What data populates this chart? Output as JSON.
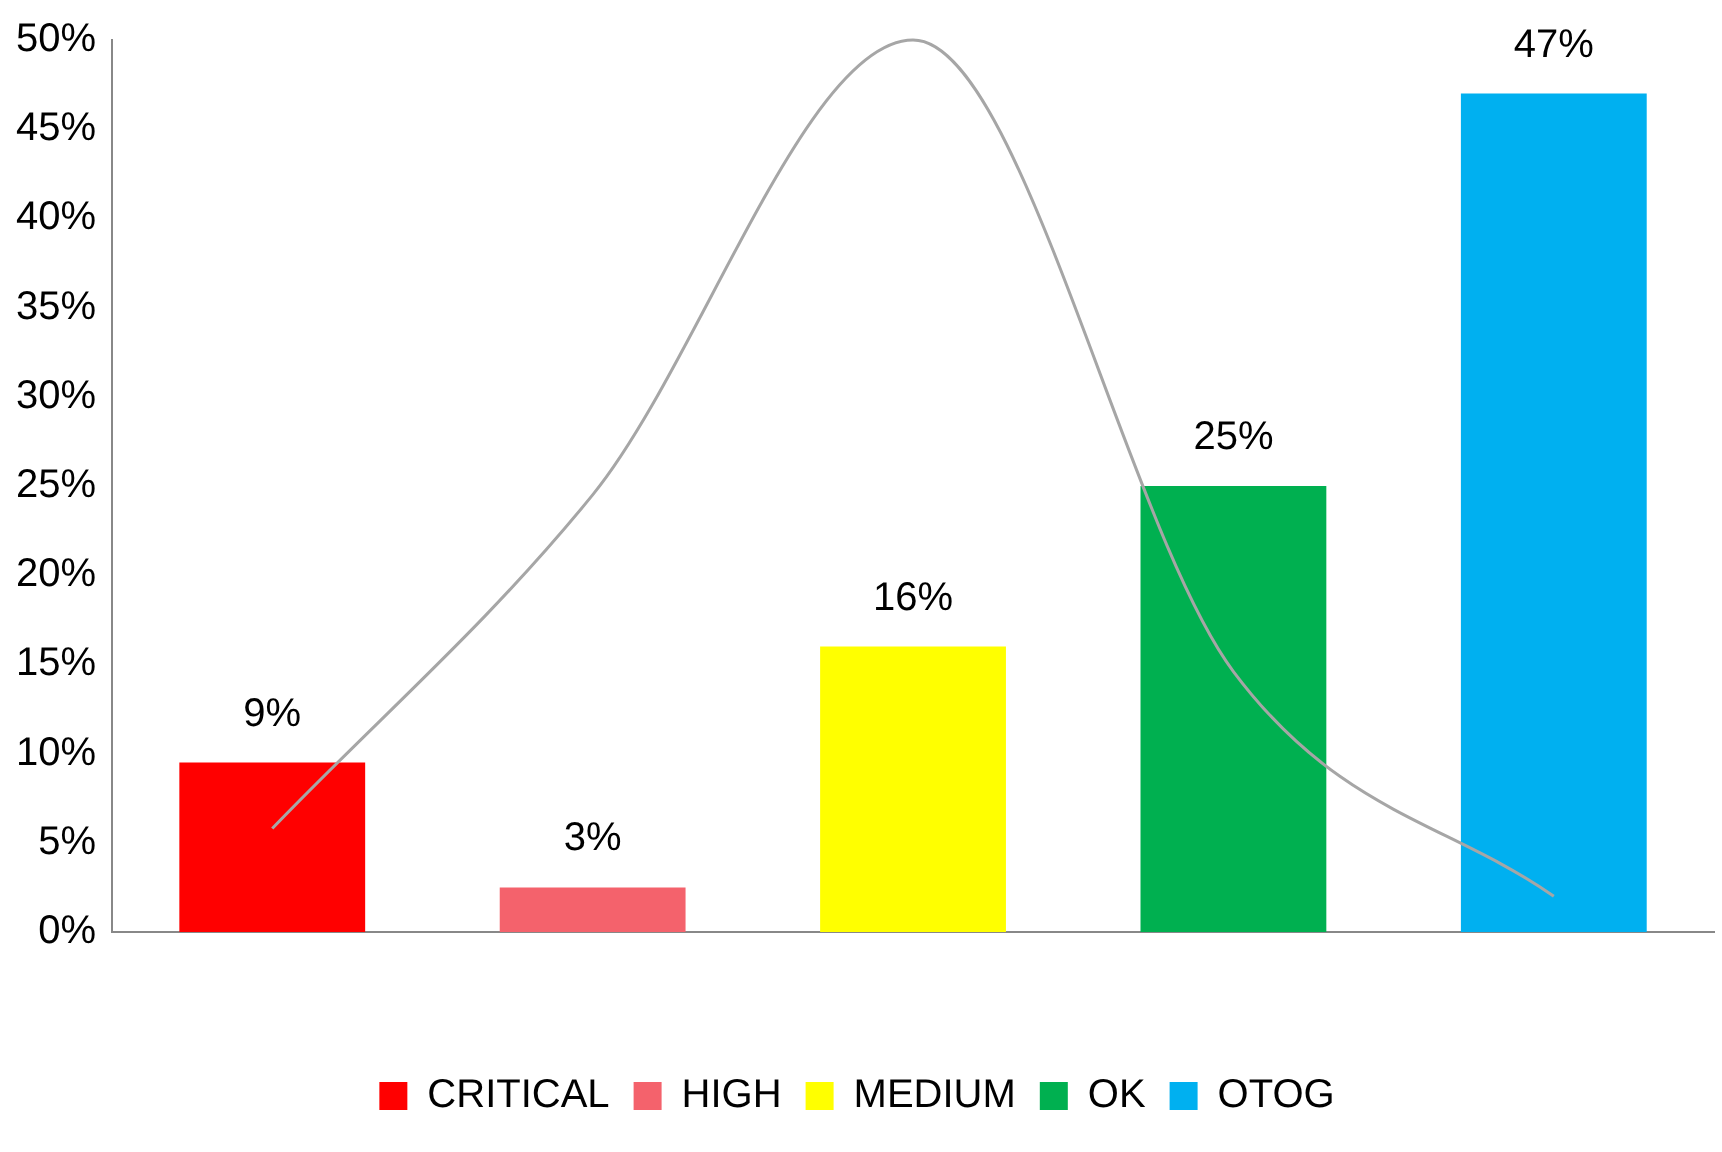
{
  "chart_data": {
    "type": "bar",
    "categories": [
      null,
      null,
      null,
      null,
      null
    ],
    "stacked": true,
    "series": [
      {
        "name": "CRITICAL",
        "color": "#ff0000",
        "values": [
          9.5,
          null,
          null,
          null,
          null
        ],
        "value_labels": [
          "9%",
          null,
          null,
          null,
          null
        ]
      },
      {
        "name": "HIGH",
        "color": "#f4626c",
        "values": [
          null,
          2.5,
          null,
          null,
          null
        ],
        "value_labels": [
          null,
          "3%",
          null,
          null,
          null
        ]
      },
      {
        "name": "MEDIUM",
        "color": "#ffff00",
        "values": [
          null,
          null,
          16,
          null,
          null
        ],
        "value_labels": [
          null,
          null,
          "16%",
          null,
          null
        ]
      },
      {
        "name": "OK",
        "color": "#00b050",
        "values": [
          null,
          null,
          null,
          25,
          null
        ],
        "value_labels": [
          null,
          null,
          null,
          "25%",
          null
        ]
      },
      {
        "name": "OTOG",
        "color": "#00b0f0",
        "values": [
          null,
          null,
          null,
          null,
          47
        ],
        "value_labels": [
          null,
          null,
          null,
          null,
          "47%"
        ]
      },
      {
        "type": "line",
        "color": "#a6a6a6",
        "values": [
          5.8,
          24.5,
          50,
          14.6,
          2
        ],
        "marker": "none"
      }
    ],
    "ylim": [
      0,
      50
    ],
    "yticks": [
      {
        "value": 0,
        "label": "0%"
      },
      {
        "value": 5,
        "label": "5%"
      },
      {
        "value": 10,
        "label": "10%"
      },
      {
        "value": 15,
        "label": "15%"
      },
      {
        "value": 20,
        "label": "20%"
      },
      {
        "value": 25,
        "label": "25%"
      },
      {
        "value": 30,
        "label": "30%"
      },
      {
        "value": 35,
        "label": "35%"
      },
      {
        "value": 40,
        "label": "40%"
      },
      {
        "value": 45,
        "label": "45%"
      },
      {
        "value": 50,
        "label": "50%"
      }
    ],
    "grid": false,
    "legend": "bottom"
  }
}
